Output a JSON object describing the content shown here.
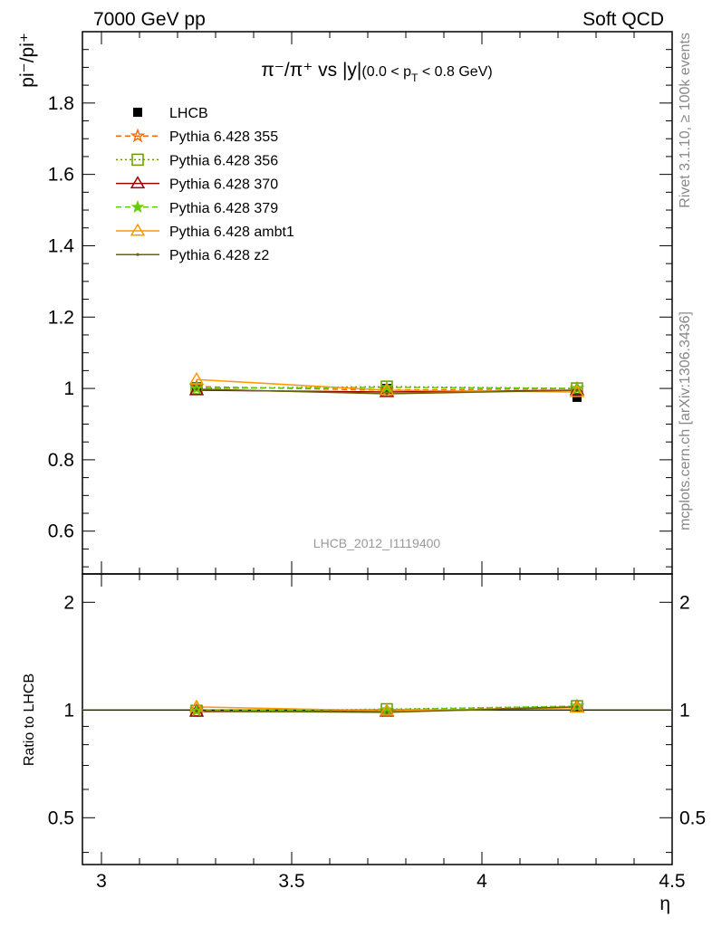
{
  "header": {
    "left": "7000 GeV pp",
    "right": "Soft QCD"
  },
  "side_text": {
    "rivet": "Rivet 3.1.10, ≥ 100k events",
    "mcplots": "mcplots.cern.ch [arXiv:1306.3436]"
  },
  "chart_data": {
    "type": "line",
    "title": "π⁻/π⁺ vs |y|(0.0 < p_T < 0.8 GeV)",
    "title_parts": {
      "main": "π⁻/π⁺ vs |y|",
      "cut_a": "(0.0 < p",
      "cut_sub": "T",
      "cut_b": " < 0.8 GeV)"
    },
    "ylabel": "pi⁻/pi⁺",
    "xlabel": "η",
    "ratio_ylabel": "Ratio to LHCB",
    "watermark": "LHCB_2012_I1119400",
    "xlim": [
      2.95,
      4.5
    ],
    "ylim": [
      0.48,
      2.0
    ],
    "ratio_ylim": [
      0.37,
      2.4
    ],
    "x_ticks": [
      "3",
      "3.5",
      "4",
      "4.5"
    ],
    "y_ticks": [
      "0.6",
      "0.8",
      "1",
      "1.2",
      "1.4",
      "1.6",
      "1.8"
    ],
    "ratio_y_ticks": [
      "0.5",
      "1",
      "2"
    ],
    "x": [
      3.25,
      3.75,
      4.25
    ],
    "series": [
      {
        "name": "LHCB",
        "color": "#000000",
        "marker": "square-filled",
        "dash": "none",
        "values": [
          1.005,
          1.0,
          0.975
        ],
        "ratio": [
          1.0,
          1.0,
          1.0
        ]
      },
      {
        "name": "Pythia 6.428 355",
        "color": "#ff6600",
        "marker": "star-open",
        "dash": "dashed",
        "values": [
          1.005,
          0.995,
          1.0
        ],
        "ratio": [
          1.0,
          0.995,
          1.025
        ]
      },
      {
        "name": "Pythia 6.428 356",
        "color": "#669900",
        "marker": "square-open",
        "dash": "dotted",
        "values": [
          1.0,
          1.005,
          1.0
        ],
        "ratio": [
          0.995,
          1.005,
          1.025
        ]
      },
      {
        "name": "Pythia 6.428 370",
        "color": "#990000",
        "marker": "triangle-open",
        "dash": "none",
        "values": [
          0.995,
          0.99,
          0.995
        ],
        "ratio": [
          0.99,
          0.99,
          1.02
        ]
      },
      {
        "name": "Pythia 6.428 379",
        "color": "#66cc00",
        "marker": "star-filled",
        "dash": "dashed",
        "values": [
          1.0,
          1.003,
          1.0
        ],
        "ratio": [
          0.995,
          1.003,
          1.025
        ]
      },
      {
        "name": "Pythia 6.428 ambt1",
        "color": "#ff9900",
        "marker": "triangle-open",
        "dash": "none",
        "values": [
          1.025,
          0.995,
          0.99
        ],
        "ratio": [
          1.02,
          0.995,
          1.015
        ]
      },
      {
        "name": "Pythia 6.428 z2",
        "color": "#666600",
        "marker": "dot",
        "dash": "none",
        "values": [
          0.998,
          0.985,
          0.995
        ],
        "ratio": [
          0.993,
          0.985,
          1.02
        ]
      }
    ],
    "ratio_band_color": "#ccff00",
    "grid": false,
    "legend_position": "top-left"
  }
}
